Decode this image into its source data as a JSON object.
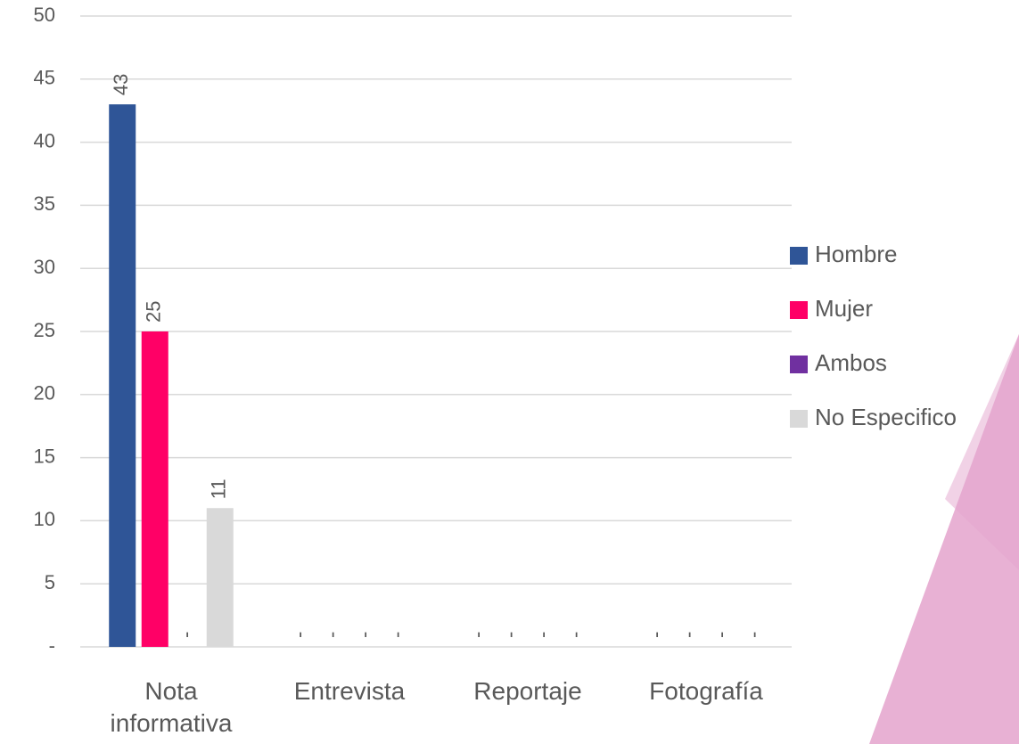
{
  "chart_data": {
    "type": "bar",
    "categories": [
      "Nota informativa",
      "Entrevista",
      "Reportaje",
      "Fotografía"
    ],
    "series": [
      {
        "name": "Hombre",
        "color": "#2f5597",
        "values": [
          43,
          0,
          0,
          0
        ],
        "value_labels": [
          "43",
          "-",
          "-",
          "-"
        ]
      },
      {
        "name": "Mujer",
        "color": "#ff0066",
        "values": [
          25,
          0,
          0,
          0
        ],
        "value_labels": [
          "25",
          "-",
          "-",
          "-"
        ]
      },
      {
        "name": "Ambos",
        "color": "#7030a0",
        "values": [
          0,
          0,
          0,
          0
        ],
        "value_labels": [
          "-",
          "-",
          "-",
          "-"
        ]
      },
      {
        "name": "No Especifico",
        "color": "#d9d9d9",
        "values": [
          11,
          0,
          0,
          0
        ],
        "value_labels": [
          "11",
          "-",
          "-",
          "-"
        ]
      }
    ],
    "ylim": [
      0,
      50
    ],
    "yticks": [
      {
        "value": 0,
        "label": "-"
      },
      5,
      10,
      15,
      20,
      25,
      30,
      35,
      40,
      45,
      50
    ],
    "grid": true,
    "legend": "right"
  }
}
